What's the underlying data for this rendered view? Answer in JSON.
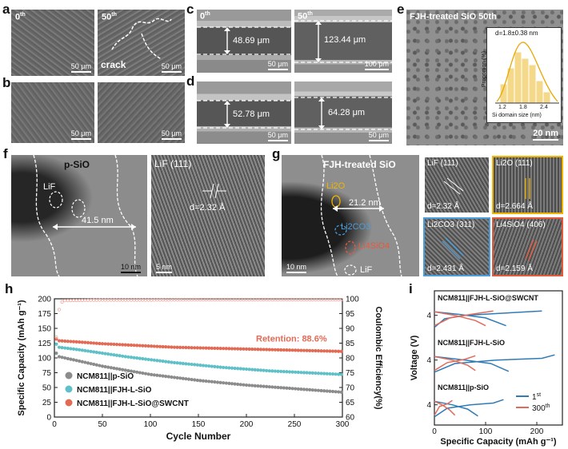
{
  "panels": {
    "a": {
      "letter": "a",
      "left_label": "0",
      "right_label": "50",
      "label_sup": "th",
      "crack": "crack",
      "scale": "50 μm"
    },
    "b": {
      "letter": "b",
      "scale": "50 μm"
    },
    "c": {
      "letter": "c",
      "left_label": "0",
      "right_label": "50",
      "label_sup": "th",
      "left_thickness": "48.69 μm",
      "right_thickness": "123.44 μm",
      "left_scale": "50 μm",
      "right_scale": "100 μm"
    },
    "d": {
      "letter": "d",
      "left_thickness": "52.78 μm",
      "right_thickness": "64.28 μm",
      "scale": "50 μm"
    },
    "e": {
      "letter": "e",
      "title": "FJH-treated SiO 50th",
      "scale": "20 nm",
      "inset": {
        "annotation": "d=1.8±0.38 nm",
        "ylabel": "Proportion (%)",
        "xlabel": "Si domain size (nm)",
        "ticks": [
          "1.2",
          "1.8",
          "2.4"
        ]
      }
    },
    "f": {
      "letter": "f",
      "title": "p-SiO",
      "lif": "LiF",
      "width": "41.5 nm",
      "scale": "10 nm",
      "zoom_title": "LiF (111)",
      "zoom_d": "d=2.32 Å",
      "zoom_scale": "5 nm"
    },
    "g": {
      "letter": "g",
      "title": "FJH-treated SiO",
      "width": "21.2 nm",
      "scale": "10 nm",
      "labels": {
        "li2o": "Li2O",
        "li2co3": "Li2CO3",
        "li4sio4": "Li4SiO4",
        "lif": "LiF"
      },
      "tiles": [
        {
          "title": "LiF (111)",
          "d": "d=2.32 Å"
        },
        {
          "title": "Li2O (111)",
          "d": "d=2.664 Å"
        },
        {
          "title": "Li2CO3 (311)",
          "d": "d=2.431 Å"
        },
        {
          "title": "Li4SiO4 (406)",
          "d": "d=2.159 Å"
        }
      ]
    },
    "h": {
      "letter": "h",
      "retention": "Retention: 88.6%"
    },
    "i": {
      "letter": "i",
      "legend_first": "1",
      "legend_first_sup": "st",
      "legend_second": "300",
      "legend_second_sup": "th"
    }
  },
  "chart_data": [
    {
      "type": "scatter",
      "panel": "h",
      "xlabel": "Cycle Number",
      "ylabel": "Specific Capacity (mAh g⁻¹)",
      "y2label": "Coulombic Efficiency(%)",
      "xlim": [
        0,
        300
      ],
      "ylim": [
        0,
        200
      ],
      "y2lim": [
        60,
        100
      ],
      "xticks": [
        0,
        50,
        100,
        150,
        200,
        250,
        300
      ],
      "yticks": [
        0,
        25,
        50,
        75,
        100,
        125,
        150,
        175,
        200
      ],
      "y2ticks": [
        60,
        65,
        70,
        75,
        80,
        85,
        90,
        95,
        100
      ],
      "legend_position": "bottom-left",
      "colors": {
        "gray": "#8c8c8c",
        "teal": "#5fc0c8",
        "red": "#e26b55",
        "ce": "#f0a9a0"
      },
      "series": [
        {
          "name": "NCM811||p-SiO",
          "color": "#8c8c8c",
          "x": [
            1,
            5,
            25,
            50,
            75,
            100,
            125,
            150,
            175,
            200,
            225,
            250,
            275,
            300
          ],
          "y": [
            110,
            102,
            95,
            86,
            79,
            72,
            67,
            62,
            58,
            54,
            51,
            48,
            45,
            42
          ]
        },
        {
          "name": "NCM811||FJH-L-SiO",
          "color": "#5fc0c8",
          "x": [
            1,
            5,
            25,
            50,
            75,
            100,
            125,
            150,
            175,
            200,
            225,
            250,
            275,
            300
          ],
          "y": [
            125,
            118,
            114,
            108,
            102,
            97,
            92,
            88,
            84,
            81,
            78,
            76,
            74,
            72
          ]
        },
        {
          "name": "NCM811||FJH-L-SiO@SWCNT",
          "color": "#e26b55",
          "x": [
            1,
            5,
            25,
            50,
            75,
            100,
            125,
            150,
            175,
            200,
            225,
            250,
            275,
            300
          ],
          "y": [
            133,
            129,
            127,
            124,
            122,
            120,
            118,
            117,
            116,
            115,
            114,
            113,
            112,
            111
          ]
        },
        {
          "name": "",
          "color": "#f0a9a0",
          "axis": "y2",
          "x": [
            1,
            3,
            6,
            10,
            50,
            100,
            150,
            200,
            250,
            300
          ],
          "y": [
            82,
            92,
            98.5,
            99.4,
            99.6,
            99.6,
            99.7,
            99.7,
            99.7,
            99.7
          ]
        }
      ]
    },
    {
      "type": "line",
      "panel": "i",
      "xlabel": "Specific Capacity (mAh g⁻¹)",
      "ylabel": "Voltage (V)",
      "xlim": [
        0,
        250
      ],
      "xticks": [
        0,
        100,
        200
      ],
      "yticks_label": "4",
      "legend_position": "bottom-right",
      "colors": {
        "first": "#2e7bb7",
        "last": "#e06b5b"
      },
      "subplots": [
        {
          "title": "NCM811||FJH-L-SiO@SWCNT",
          "first": {
            "charge": [
              [
                0,
                3.3
              ],
              [
                20,
                3.8
              ],
              [
                60,
                4.0
              ],
              [
                120,
                4.1
              ],
              [
                210,
                4.25
              ]
            ],
            "discharge": [
              [
                0,
                4.2
              ],
              [
                50,
                4.05
              ],
              [
                100,
                3.85
              ],
              [
                140,
                3.4
              ]
            ]
          },
          "last": {
            "charge": [
              [
                0,
                3.4
              ],
              [
                30,
                3.85
              ],
              [
                70,
                4.05
              ],
              [
                115,
                4.25
              ]
            ],
            "discharge": [
              [
                0,
                4.2
              ],
              [
                40,
                4.0
              ],
              [
                80,
                3.7
              ],
              [
                100,
                3.4
              ]
            ]
          }
        },
        {
          "title": "NCM811||FJH-L-SiO",
          "first": {
            "charge": [
              [
                0,
                3.3
              ],
              [
                40,
                3.8
              ],
              [
                120,
                4.0
              ],
              [
                210,
                4.1
              ],
              [
                235,
                4.3
              ]
            ],
            "discharge": [
              [
                0,
                4.2
              ],
              [
                60,
                4.0
              ],
              [
                110,
                3.8
              ],
              [
                145,
                3.35
              ]
            ]
          },
          "last": {
            "charge": [
              [
                0,
                3.4
              ],
              [
                25,
                3.85
              ],
              [
                60,
                4.05
              ],
              [
                80,
                4.25
              ]
            ],
            "discharge": [
              [
                0,
                4.2
              ],
              [
                35,
                4.0
              ],
              [
                65,
                3.7
              ],
              [
                80,
                3.4
              ]
            ]
          }
        },
        {
          "title": "NCM811||p-SiO",
          "first": {
            "charge": [
              [
                0,
                3.3
              ],
              [
                25,
                3.8
              ],
              [
                70,
                4.0
              ],
              [
                115,
                4.1
              ],
              [
                135,
                4.3
              ]
            ],
            "discharge": [
              [
                0,
                4.2
              ],
              [
                35,
                4.0
              ],
              [
                65,
                3.75
              ],
              [
                85,
                3.35
              ]
            ]
          },
          "last": {
            "charge": [
              [
                0,
                3.4
              ],
              [
                10,
                3.9
              ],
              [
                25,
                4.05
              ],
              [
                35,
                4.25
              ]
            ],
            "discharge": [
              [
                0,
                4.2
              ],
              [
                15,
                4.0
              ],
              [
                30,
                3.7
              ],
              [
                40,
                3.4
              ]
            ]
          }
        }
      ]
    }
  ]
}
